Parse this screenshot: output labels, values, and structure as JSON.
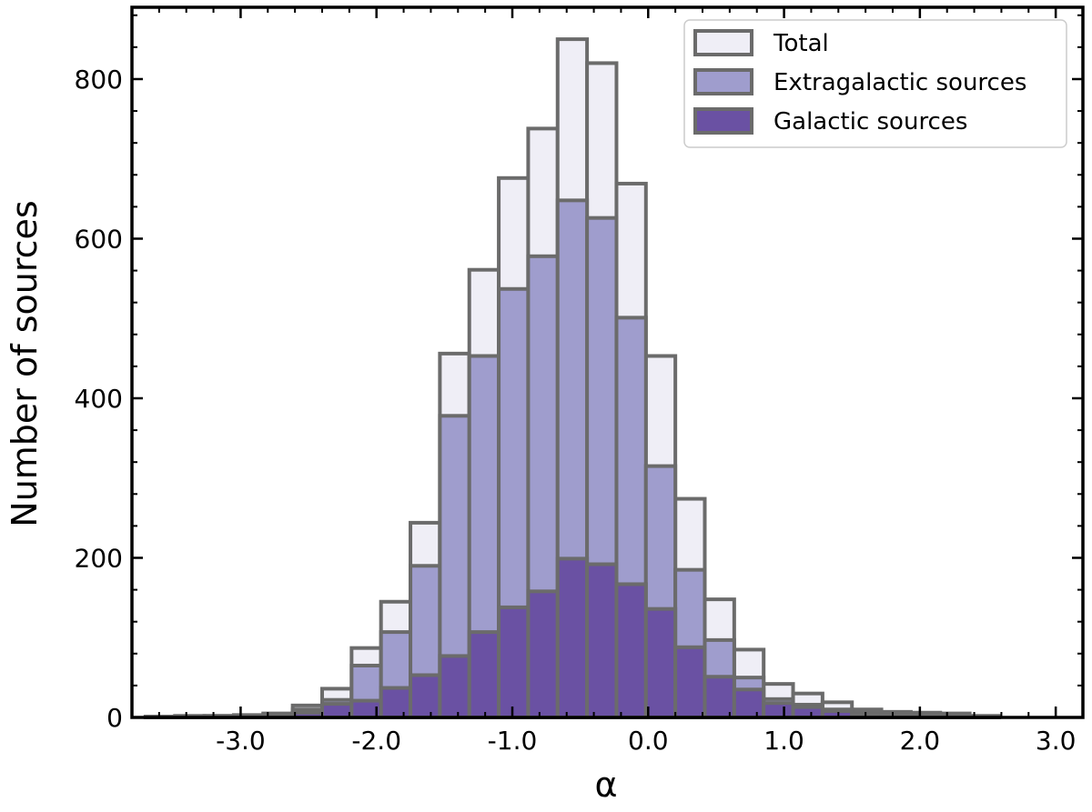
{
  "chart_data": {
    "type": "bar",
    "stacking": "overlaid",
    "title": "",
    "xlabel": "α",
    "ylabel": "Number of sources",
    "xlim": [
      -3.8,
      3.2
    ],
    "ylim": [
      0,
      890
    ],
    "xticks": [
      -3.0,
      -2.0,
      -1.0,
      0.0,
      1.0,
      2.0,
      3.0
    ],
    "xtick_labels": [
      "-3.0",
      "-2.0",
      "-1.0",
      "0.0",
      "1.0",
      "2.0",
      "3.0"
    ],
    "yticks": [
      0,
      200,
      400,
      600,
      800
    ],
    "ytick_labels": [
      "0",
      "200",
      "400",
      "600",
      "800"
    ],
    "grid": false,
    "legend_position": "top-right",
    "bin_width": 0.2167,
    "bin_starts": [
      -3.7,
      -3.4833,
      -3.2667,
      -3.05,
      -2.8333,
      -2.6167,
      -2.4,
      -2.1833,
      -1.9667,
      -1.75,
      -1.5333,
      -1.3167,
      -1.1,
      -0.8833,
      -0.6667,
      -0.45,
      -0.2333,
      -0.0167,
      0.2,
      0.4167,
      0.6333,
      0.85,
      1.0667,
      1.2833,
      1.5,
      1.7167,
      1.9333,
      2.15,
      2.3667
    ],
    "series": [
      {
        "name": "Total",
        "color": "#efeef6",
        "values": [
          1,
          2,
          2,
          3,
          5,
          15,
          36,
          87,
          145,
          244,
          456,
          561,
          676,
          738,
          850,
          820,
          669,
          453,
          274,
          148,
          85,
          42,
          30,
          19,
          10,
          7,
          6,
          5,
          2
        ]
      },
      {
        "name": "Extragalactic sources",
        "color": "#9f9dcd",
        "values": [
          1,
          1,
          2,
          2,
          4,
          10,
          22,
          65,
          107,
          190,
          378,
          453,
          537,
          578,
          648,
          626,
          501,
          315,
          185,
          97,
          50,
          23,
          16,
          10,
          6,
          4,
          3,
          2,
          1
        ]
      },
      {
        "name": "Galactic sources",
        "color": "#6a51a3",
        "values": [
          0,
          0,
          1,
          1,
          2,
          6,
          17,
          21,
          37,
          53,
          77,
          107,
          138,
          158,
          199,
          192,
          167,
          136,
          88,
          51,
          35,
          18,
          13,
          8,
          4,
          3,
          2,
          1,
          1
        ]
      }
    ]
  }
}
